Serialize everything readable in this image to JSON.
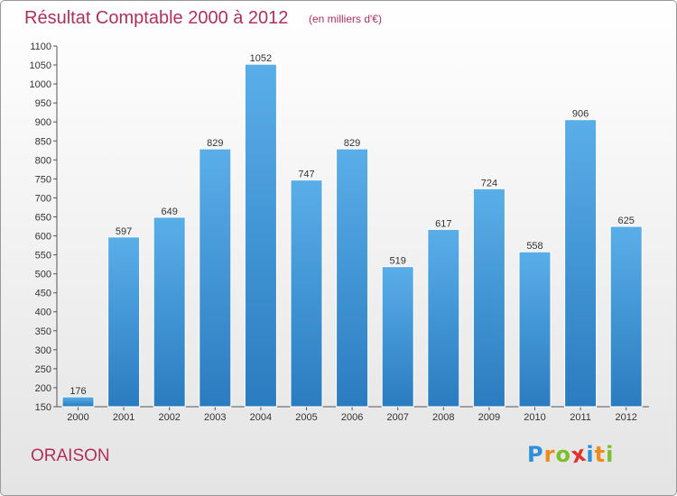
{
  "header": {
    "title": "Résultat Comptable 2000 à 2012",
    "subtitle": "(en milliers d'€)"
  },
  "footer": {
    "commune": "ORAISON",
    "logo_text": "Proxiti",
    "logo_letters": [
      {
        "ch": "P",
        "color": "#2f8fd8"
      },
      {
        "ch": "r",
        "color": "#f08a1c"
      },
      {
        "ch": "o",
        "color": "#7cbf2a"
      },
      {
        "ch": "x",
        "color": "#e0312a"
      },
      {
        "ch": "i",
        "color": "#2f8fd8"
      },
      {
        "ch": "t",
        "color": "#f08a1c"
      },
      {
        "ch": "i",
        "color": "#7cbf2a"
      }
    ]
  },
  "colors": {
    "bar_top": "#5aaee8",
    "bar_bottom": "#2a7cc0",
    "title": "#b0305a"
  },
  "chart_data": {
    "type": "bar",
    "title": "Résultat Comptable 2000 à 2012",
    "subtitle": "(en milliers d'€)",
    "categories": [
      "2000",
      "2001",
      "2002",
      "2003",
      "2004",
      "2005",
      "2006",
      "2007",
      "2008",
      "2009",
      "2010",
      "2011",
      "2012"
    ],
    "values": [
      176,
      597,
      649,
      829,
      1052,
      747,
      829,
      519,
      617,
      724,
      558,
      906,
      625
    ],
    "ylim": [
      150,
      1100
    ],
    "ytick_step": 50,
    "grid": false,
    "legend": "none"
  }
}
